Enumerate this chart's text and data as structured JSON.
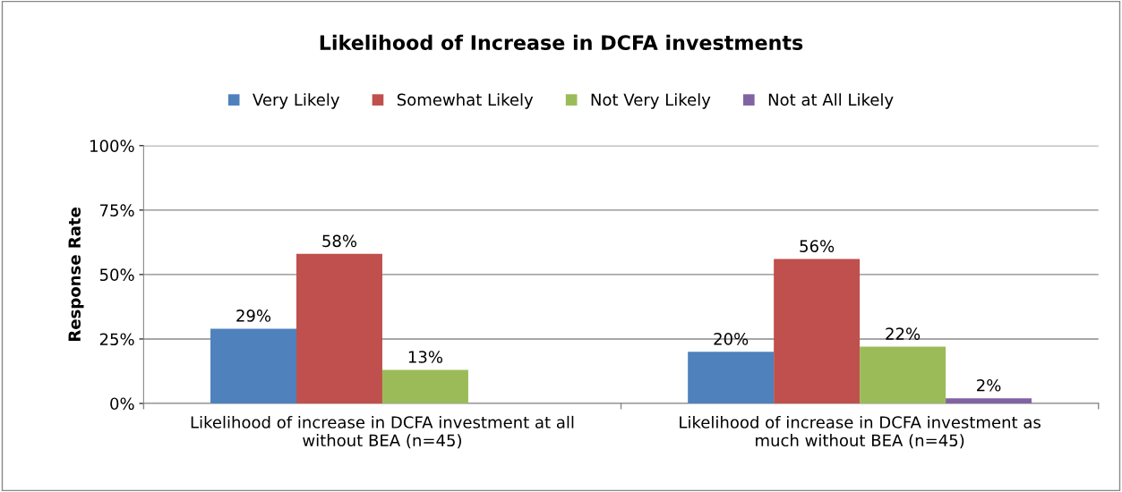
{
  "chart_data": {
    "type": "bar",
    "title": "Likelihood of Increase in DCFA investments",
    "ylabel": "Response Rate",
    "categories": [
      "Likelihood of increase in DCFA investment at all\nwithout BEA (n=45)",
      "Likelihood of increase in DCFA investment as\nmuch without BEA (n=45)"
    ],
    "series": [
      {
        "name": "Very Likely",
        "color": "#4f81bd",
        "values": [
          29,
          20
        ],
        "value_labels": [
          "29%",
          "20%"
        ]
      },
      {
        "name": "Somewhat Likely",
        "color": "#c0504d",
        "values": [
          58,
          56
        ],
        "value_labels": [
          "58%",
          "56%"
        ]
      },
      {
        "name": "Not Very Likely",
        "color": "#9bbb59",
        "values": [
          13,
          22
        ],
        "value_labels": [
          "13%",
          "22%"
        ]
      },
      {
        "name": "Not at All Likely",
        "color": "#8064a2",
        "values": [
          null,
          2
        ],
        "value_labels": [
          null,
          "2%"
        ]
      }
    ],
    "ylim": [
      0,
      100
    ],
    "yticks": [
      {
        "value": 0,
        "label": "0%"
      },
      {
        "value": 25,
        "label": "25%"
      },
      {
        "value": 50,
        "label": "50%"
      },
      {
        "value": 75,
        "label": "75%"
      },
      {
        "value": 100,
        "label": "100%"
      }
    ],
    "grid": "y",
    "legend": "top"
  }
}
